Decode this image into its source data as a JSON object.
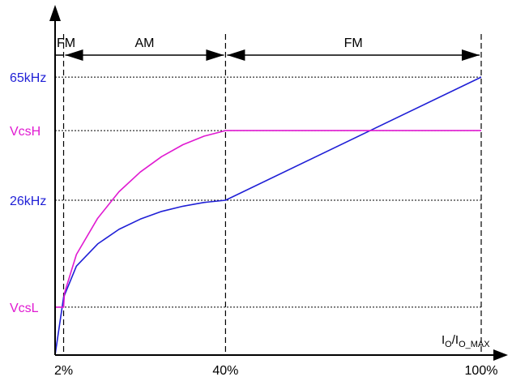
{
  "chart_data": {
    "type": "line",
    "xlabel": {
      "main": "I",
      "sub1": "O",
      "mid": "/I",
      "sub2": "O_MAX"
    },
    "x_ticks": [
      {
        "value": 2,
        "label": "2%"
      },
      {
        "value": 40,
        "label": "40%"
      },
      {
        "value": 100,
        "label": "100%"
      }
    ],
    "y_ticks": [
      {
        "name": "65khz",
        "value": 65,
        "label": "65kHz",
        "color": "#1f1fd6"
      },
      {
        "name": "vcsh",
        "value": 52.5,
        "label": "VcsH",
        "color": "#e01ad1"
      },
      {
        "name": "26khz",
        "value": 36.2,
        "label": "26kHz",
        "color": "#1f1fd6"
      },
      {
        "name": "vcsl",
        "value": 11.2,
        "label": "VcsL",
        "color": "#e01ad1"
      }
    ],
    "regions": [
      {
        "name": "fm-left",
        "label": "FM",
        "from": 0,
        "to": 2
      },
      {
        "name": "am",
        "label": "AM",
        "from": 2,
        "to": 40
      },
      {
        "name": "fm-right",
        "label": "FM",
        "from": 40,
        "to": 100
      }
    ],
    "xlim": [
      0,
      100
    ],
    "ylim": [
      0,
      80
    ],
    "series": [
      {
        "color": "#1f1fd6",
        "points": [
          [
            0,
            0
          ],
          [
            2,
            13.5
          ],
          [
            5,
            20.8
          ],
          [
            10,
            26.0
          ],
          [
            15,
            29.4
          ],
          [
            20,
            31.8
          ],
          [
            25,
            33.6
          ],
          [
            30,
            34.8
          ],
          [
            35,
            35.7
          ],
          [
            40,
            36.2
          ],
          [
            100,
            65
          ]
        ]
      },
      {
        "color": "#e01ad1",
        "points": [
          [
            0,
            11.2
          ],
          [
            2,
            11.2
          ],
          [
            2.2,
            14.5
          ],
          [
            5,
            23.5
          ],
          [
            10,
            32.0
          ],
          [
            15,
            38.2
          ],
          [
            20,
            42.8
          ],
          [
            25,
            46.4
          ],
          [
            30,
            49.2
          ],
          [
            35,
            51.2
          ],
          [
            40,
            52.5
          ],
          [
            100,
            52.5
          ]
        ]
      }
    ]
  }
}
